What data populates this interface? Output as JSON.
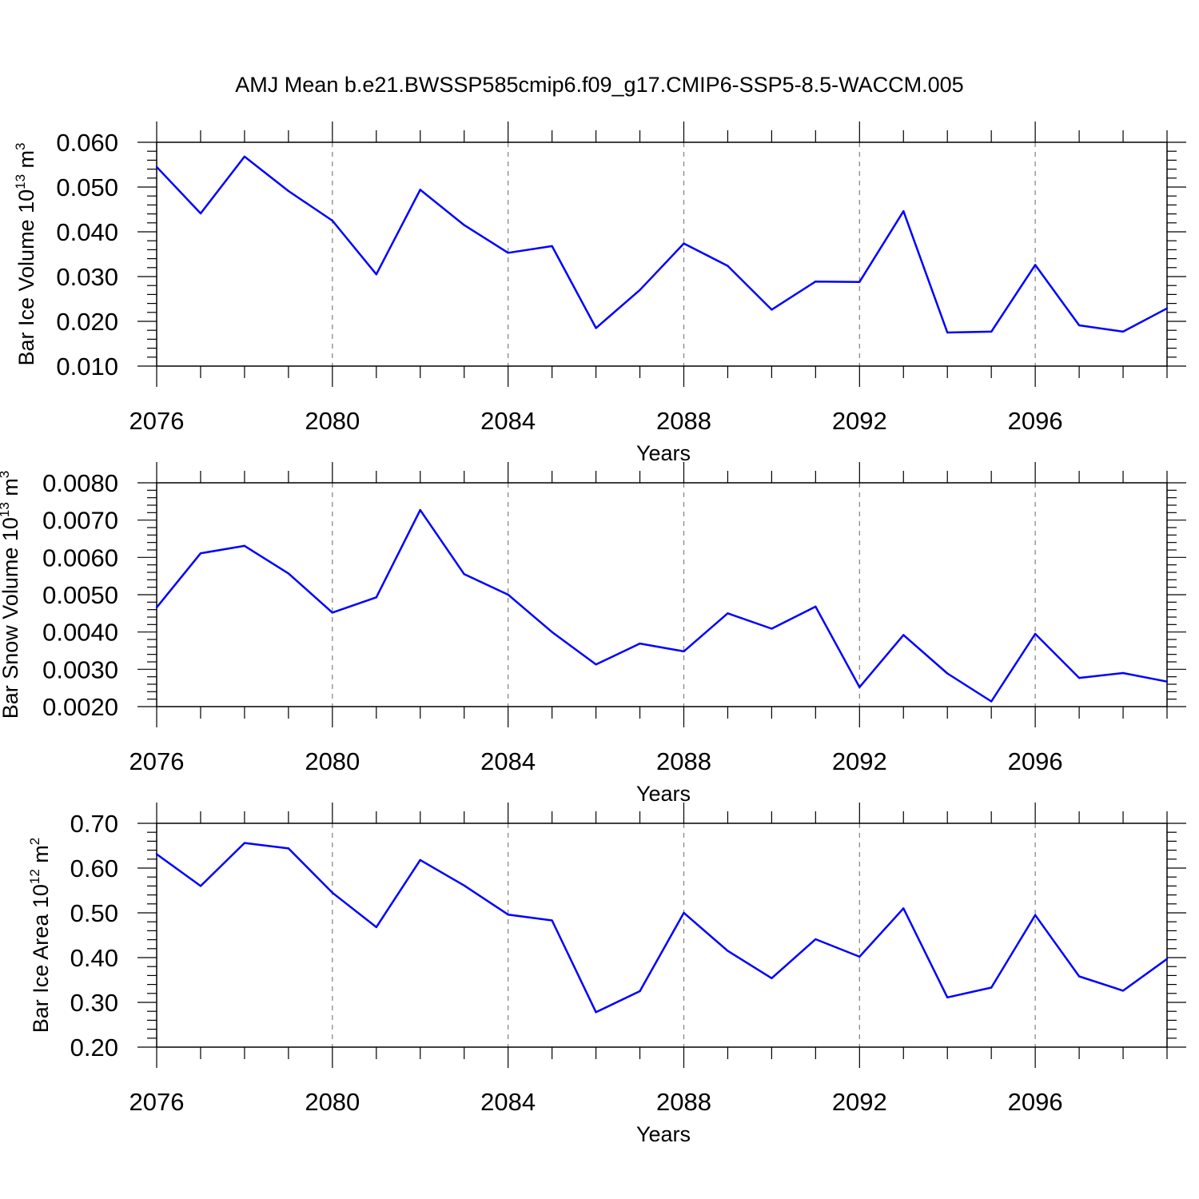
{
  "title": "AMJ Mean b.e21.BWSSP585cmip6.f09_g17.CMIP6-SSP5-8.5-WACCM.005",
  "line_color": "#0000ff",
  "grid_color": "#808080",
  "chart_data": [
    {
      "type": "line",
      "ylabel": "Bar Ice Volume 10",
      "ylabel_exp": "13",
      "ylabel_unit": " m",
      "ylabel_unit_exp": "3",
      "xlabel": "Years",
      "xlim": [
        2076,
        2099
      ],
      "ylim": [
        0.01,
        0.06
      ],
      "xticks": [
        "2076",
        "2080",
        "2084",
        "2088",
        "2092",
        "2096"
      ],
      "yticks": [
        "0.010",
        "0.020",
        "0.030",
        "0.040",
        "0.050",
        "0.060"
      ],
      "grid": "vertical dashed at major x ticks",
      "x": [
        2076,
        2077,
        2078,
        2079,
        2080,
        2081,
        2082,
        2083,
        2084,
        2085,
        2086,
        2087,
        2088,
        2089,
        2090,
        2091,
        2092,
        2093,
        2094,
        2095,
        2096,
        2097,
        2098,
        2099
      ],
      "values": [
        0.0545,
        0.0441,
        0.0568,
        0.0491,
        0.0425,
        0.0305,
        0.0494,
        0.0415,
        0.0353,
        0.0368,
        0.0185,
        0.027,
        0.0374,
        0.0324,
        0.0226,
        0.0289,
        0.0288,
        0.0446,
        0.0175,
        0.0177,
        0.0326,
        0.0191,
        0.0177,
        0.0229
      ]
    },
    {
      "type": "line",
      "ylabel": "Bar Snow Volume 10",
      "ylabel_exp": "13",
      "ylabel_unit": " m",
      "ylabel_unit_exp": "3",
      "xlabel": "Years",
      "xlim": [
        2076,
        2099
      ],
      "ylim": [
        0.002,
        0.008
      ],
      "xticks": [
        "2076",
        "2080",
        "2084",
        "2088",
        "2092",
        "2096"
      ],
      "yticks": [
        "0.0020",
        "0.0030",
        "0.0040",
        "0.0050",
        "0.0060",
        "0.0070",
        "0.0080"
      ],
      "grid": "vertical dashed at major x ticks",
      "x": [
        2076,
        2077,
        2078,
        2079,
        2080,
        2081,
        2082,
        2083,
        2084,
        2085,
        2086,
        2087,
        2088,
        2089,
        2090,
        2091,
        2092,
        2093,
        2094,
        2095,
        2096,
        2097,
        2098,
        2099
      ],
      "values": [
        0.00466,
        0.00611,
        0.00631,
        0.00557,
        0.00452,
        0.00493,
        0.00727,
        0.00555,
        0.005,
        0.004,
        0.00313,
        0.00369,
        0.00348,
        0.0045,
        0.00409,
        0.00468,
        0.00252,
        0.00392,
        0.00289,
        0.00214,
        0.00395,
        0.00277,
        0.0029,
        0.00267
      ]
    },
    {
      "type": "line",
      "ylabel": "Bar Ice Area 10",
      "ylabel_exp": "12",
      "ylabel_unit": " m",
      "ylabel_unit_exp": "2",
      "xlabel": "Years",
      "xlim": [
        2076,
        2099
      ],
      "ylim": [
        0.2,
        0.7
      ],
      "xticks": [
        "2076",
        "2080",
        "2084",
        "2088",
        "2092",
        "2096"
      ],
      "yticks": [
        "0.20",
        "0.30",
        "0.40",
        "0.50",
        "0.60",
        "0.70"
      ],
      "grid": "vertical dashed at major x ticks",
      "x": [
        2076,
        2077,
        2078,
        2079,
        2080,
        2081,
        2082,
        2083,
        2084,
        2085,
        2086,
        2087,
        2088,
        2089,
        2090,
        2091,
        2092,
        2093,
        2094,
        2095,
        2096,
        2097,
        2098,
        2099
      ],
      "values": [
        0.631,
        0.56,
        0.656,
        0.644,
        0.545,
        0.468,
        0.618,
        0.561,
        0.496,
        0.483,
        0.278,
        0.325,
        0.5,
        0.415,
        0.354,
        0.441,
        0.402,
        0.51,
        0.311,
        0.333,
        0.495,
        0.358,
        0.326,
        0.397
      ]
    }
  ]
}
